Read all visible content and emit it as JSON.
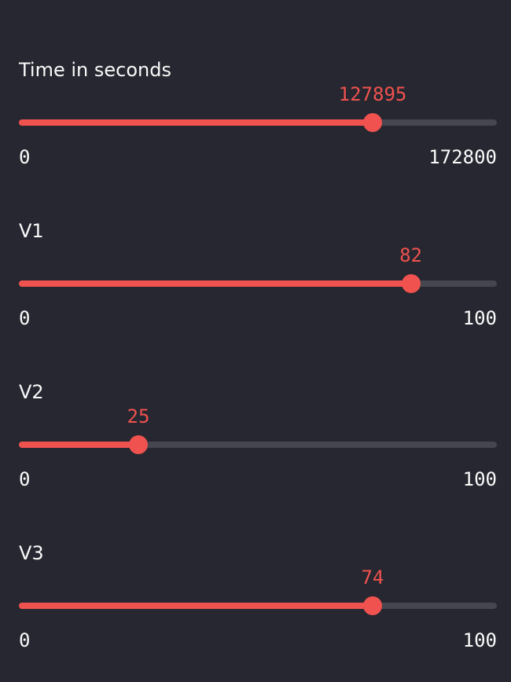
{
  "theme": {
    "background": "#262730",
    "accent": "#f0524f",
    "track": "#45464f",
    "text": "#fafafa"
  },
  "sliders": [
    {
      "label": "Time in seconds",
      "value": "127895",
      "min": "0",
      "max": "172800"
    },
    {
      "label": "V1",
      "value": "82",
      "min": "0",
      "max": "100"
    },
    {
      "label": "V2",
      "value": "25",
      "min": "0",
      "max": "100"
    },
    {
      "label": "V3",
      "value": "74",
      "min": "0",
      "max": "100"
    }
  ]
}
